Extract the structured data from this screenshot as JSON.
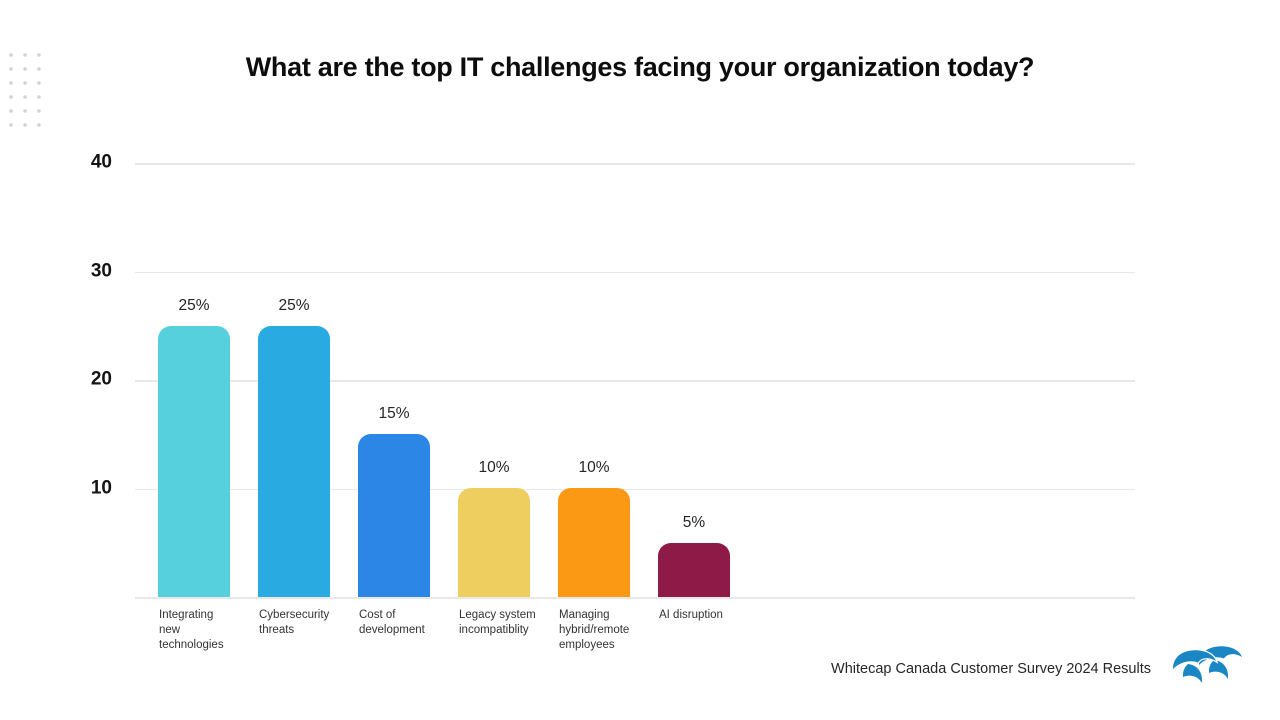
{
  "decor": {
    "dot_grid_color": "#d6d1cc"
  },
  "chart_data": {
    "type": "bar",
    "title": "What are the top IT challenges facing your organization today?",
    "categories": [
      "Integrating new technologies",
      "Cybersecurity threats",
      "Cost of development",
      "Legacy system incompatiblity",
      "Managing hybrid/remote employees",
      "AI disruption"
    ],
    "category_label_lines": [
      [
        "Integrating",
        "new",
        "technologies"
      ],
      [
        "Cybersecurity",
        "threats"
      ],
      [
        "Cost of",
        "development"
      ],
      [
        "Legacy system",
        "incompatiblity"
      ],
      [
        "Managing",
        "hybrid/remote",
        "employees"
      ],
      [
        "AI disruption"
      ]
    ],
    "values": [
      25,
      25,
      15,
      10,
      10,
      5
    ],
    "value_labels": [
      "25%",
      "25%",
      "15%",
      "10%",
      "10%",
      "5%"
    ],
    "bar_colors": [
      "#55D0DC",
      "#29ABE2",
      "#2B86E5",
      "#EDCE5F",
      "#FB9814",
      "#8E1A48"
    ],
    "y_ticks": [
      40,
      30,
      20,
      10
    ],
    "ylim": [
      0,
      40
    ],
    "xlabel": "",
    "ylabel": "",
    "grid": true,
    "legend": "none"
  },
  "footer": {
    "text": "Whitecap Canada Customer Survey 2024 Results",
    "logo": "whitecap-waves-icon",
    "logo_color": "#1B86C4"
  }
}
